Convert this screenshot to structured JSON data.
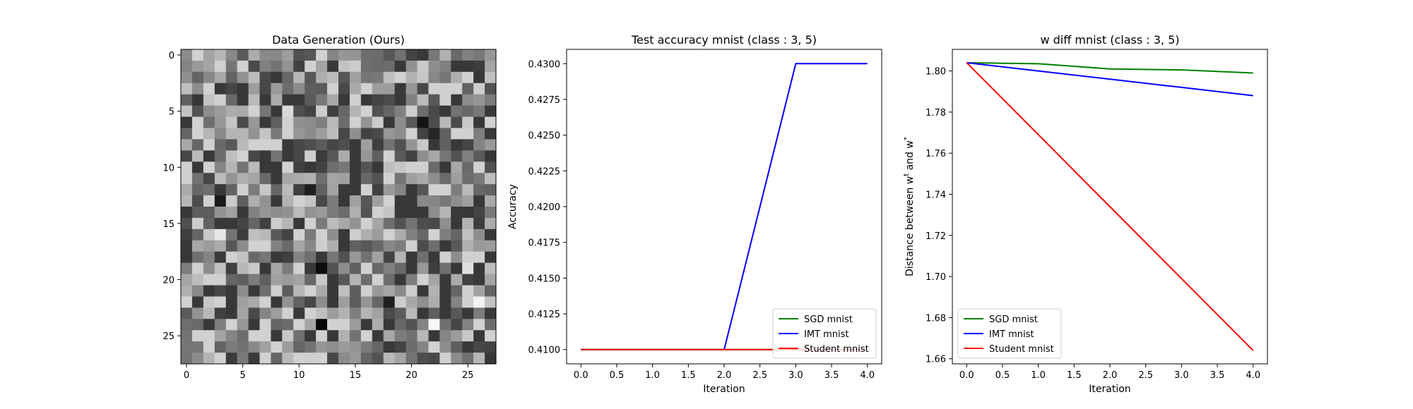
{
  "chart_data": [
    {
      "type": "heatmap",
      "title": "Data Generation (Ours)",
      "colormap": "gray",
      "rows": 28,
      "cols": 28,
      "xlim": [
        -0.5,
        27.5
      ],
      "ylim": [
        27.5,
        -0.5
      ],
      "xticks": [
        0,
        5,
        10,
        15,
        20,
        25
      ],
      "yticks": [
        0,
        5,
        10,
        15,
        20,
        25
      ],
      "value_range": [
        0,
        1
      ],
      "notable_cells": [
        {
          "row": 6,
          "col": 21,
          "value": 0.08
        },
        {
          "row": 7,
          "col": 22,
          "value": 0.15
        },
        {
          "row": 12,
          "col": 11,
          "value": 0.12
        },
        {
          "row": 13,
          "col": 3,
          "value": 0.1
        },
        {
          "row": 19,
          "col": 12,
          "value": 0.05
        },
        {
          "row": 22,
          "col": 18,
          "value": 0.12
        },
        {
          "row": 22,
          "col": 26,
          "value": 0.95
        },
        {
          "row": 24,
          "col": 12,
          "value": 0.03
        },
        {
          "row": 24,
          "col": 22,
          "value": 0.97
        },
        {
          "row": 16,
          "col": 3,
          "value": 0.9
        },
        {
          "row": 19,
          "col": 25,
          "value": 0.88
        },
        {
          "row": 5,
          "col": 9,
          "value": 0.85
        }
      ]
    },
    {
      "type": "line",
      "title": "Test accuracy mnist (class : 3, 5)",
      "xlabel": "Iteration",
      "ylabel": "Accuracy",
      "xlim": [
        -0.2,
        4.2
      ],
      "ylim": [
        0.409,
        0.431
      ],
      "xticks": [
        "0.0",
        "0.5",
        "1.0",
        "1.5",
        "2.0",
        "2.5",
        "3.0",
        "3.5",
        "4.0"
      ],
      "yticks": [
        "0.4100",
        "0.4125",
        "0.4150",
        "0.4175",
        "0.4200",
        "0.4225",
        "0.4250",
        "0.4275",
        "0.4300"
      ],
      "legend_position": "lower-right",
      "x": [
        0,
        1,
        2,
        3,
        4
      ],
      "series": [
        {
          "name": "SGD mnist",
          "color": "#008000",
          "values": [
            0.41,
            0.41,
            0.41,
            0.41,
            0.41
          ]
        },
        {
          "name": "IMT mnist",
          "color": "#0000ff",
          "values": [
            0.41,
            0.41,
            0.41,
            0.43,
            0.43
          ]
        },
        {
          "name": "Student mnist",
          "color": "#ff0000",
          "values": [
            0.41,
            0.41,
            0.41,
            0.41,
            0.41
          ]
        }
      ]
    },
    {
      "type": "line",
      "title": "w diff mnist (class : 3, 5)",
      "xlabel": "Iteration",
      "ylabel": "Distance between w",
      "ylabel_sup1": "t",
      "ylabel_mid": " and w",
      "ylabel_sup2": "*",
      "xlim": [
        -0.2,
        4.2
      ],
      "ylim": [
        1.6575,
        1.8105
      ],
      "xticks": [
        "0.0",
        "0.5",
        "1.0",
        "1.5",
        "2.0",
        "2.5",
        "3.0",
        "3.5",
        "4.0"
      ],
      "yticks": [
        "1.66",
        "1.68",
        "1.70",
        "1.72",
        "1.74",
        "1.76",
        "1.78",
        "1.80"
      ],
      "legend_position": "lower-left",
      "x": [
        0,
        1,
        2,
        3,
        4
      ],
      "series": [
        {
          "name": "SGD mnist",
          "color": "#008000",
          "values": [
            1.804,
            1.8035,
            1.801,
            1.8005,
            1.799
          ]
        },
        {
          "name": "IMT mnist",
          "color": "#0000ff",
          "values": [
            1.804,
            1.8,
            1.796,
            1.792,
            1.788
          ]
        },
        {
          "name": "Student mnist",
          "color": "#ff0000",
          "values": [
            1.804,
            1.769,
            1.734,
            1.699,
            1.664
          ]
        }
      ]
    }
  ]
}
